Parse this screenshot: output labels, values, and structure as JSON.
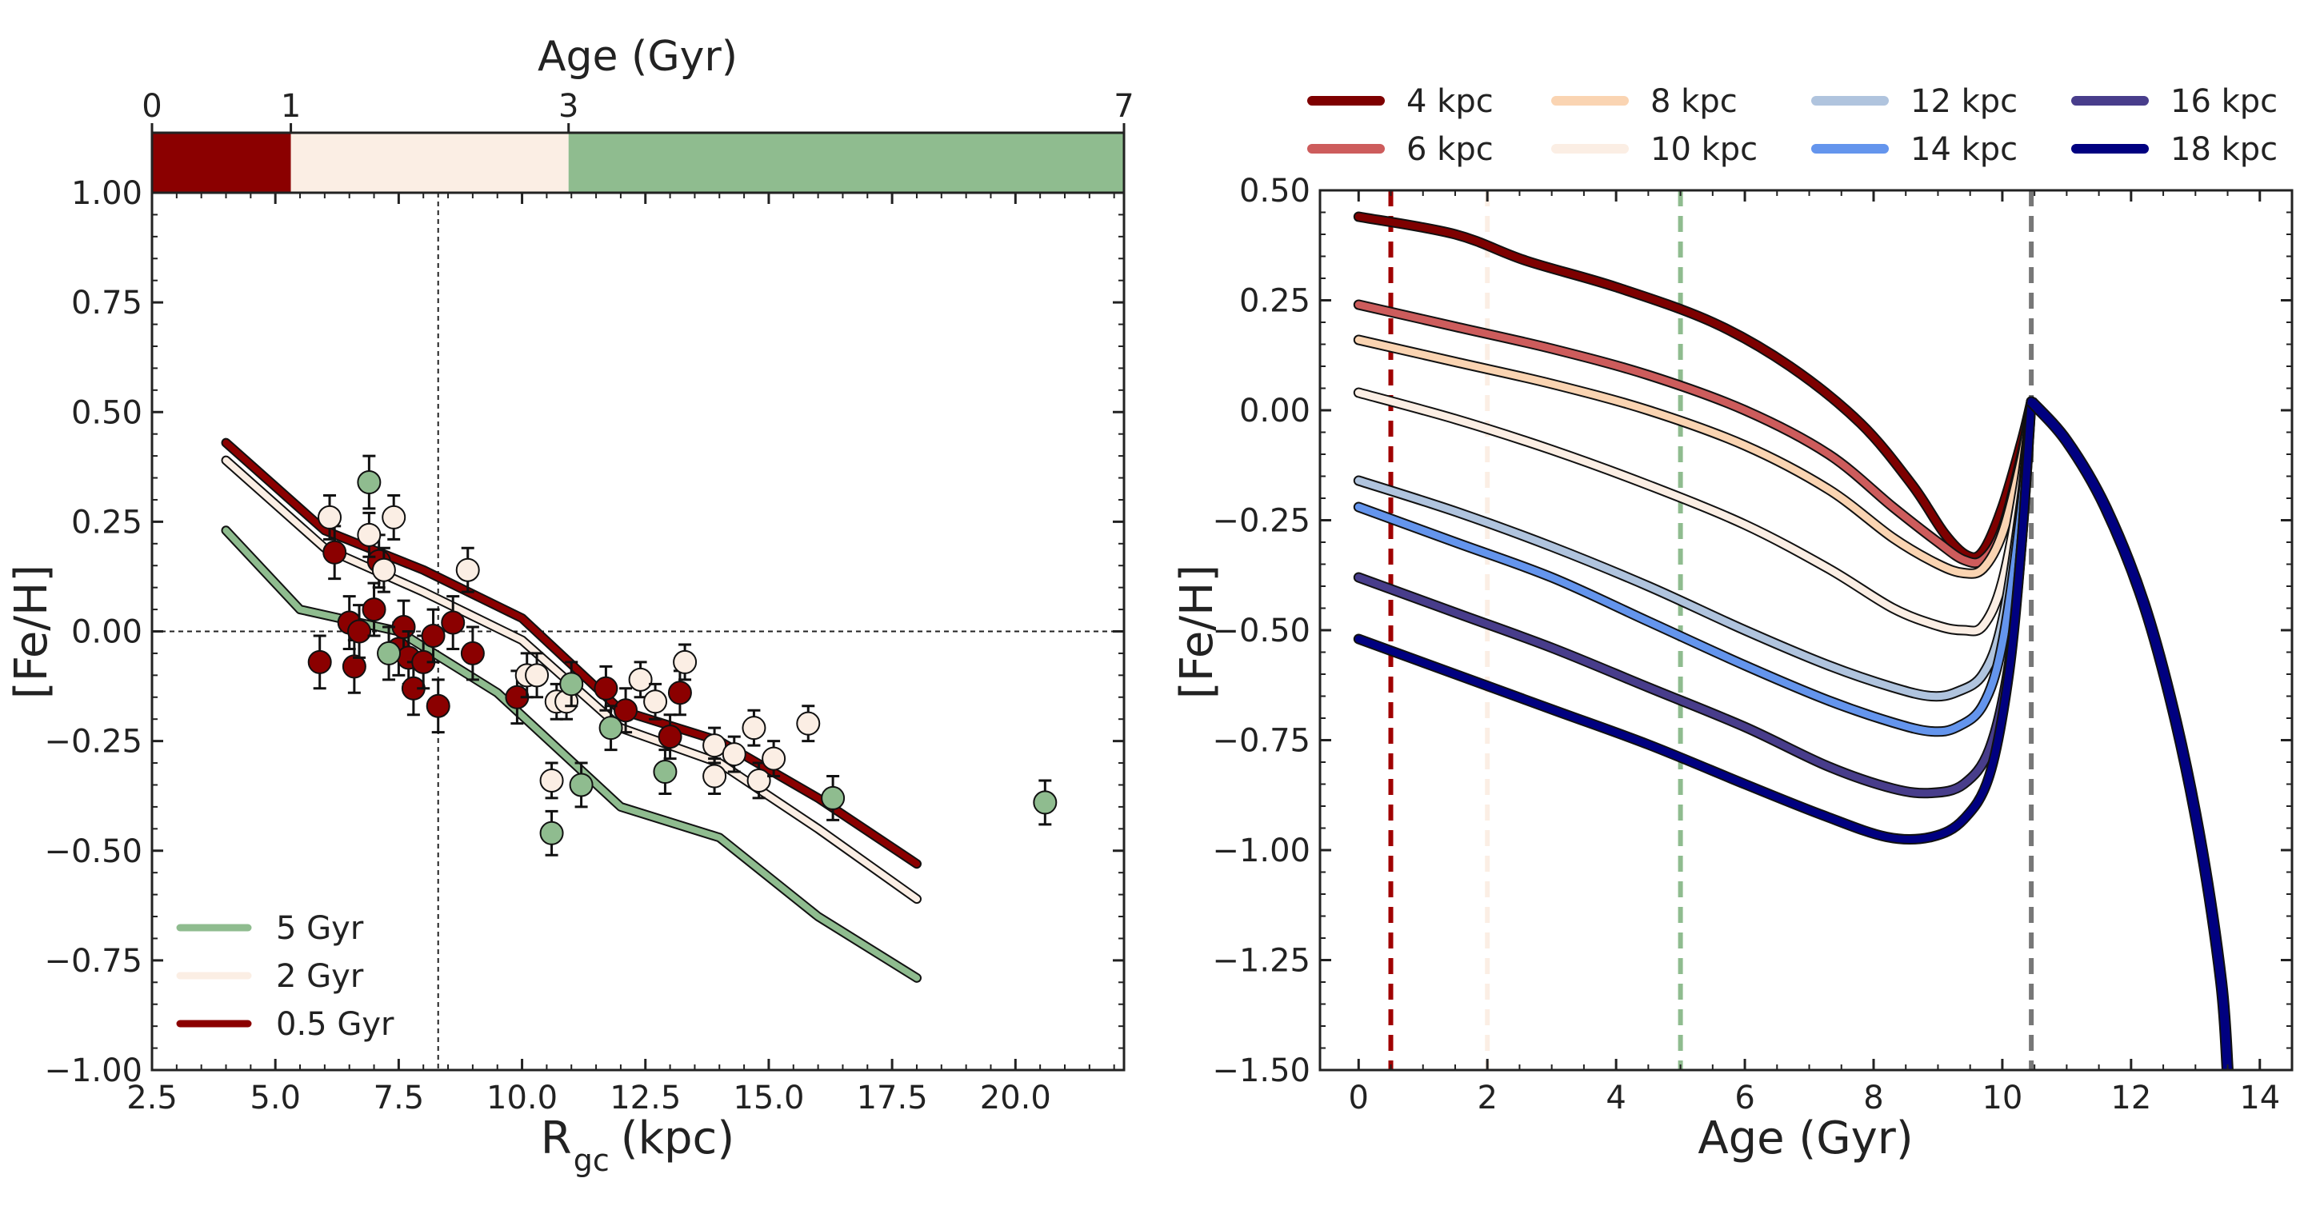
{
  "chart_data": [
    {
      "type": "scatter",
      "panel": "left",
      "xlabel_main": "R",
      "xlabel_sub": "gc",
      "xlabel_unit": "(kpc)",
      "ylabel": "[Fe/H]",
      "xlim": [
        2.5,
        22.2
      ],
      "ylim": [
        -1.0,
        1.0
      ],
      "x_ticks": [
        "2.5",
        "5.0",
        "7.5",
        "10.0",
        "12.5",
        "15.0",
        "17.5",
        "20.0"
      ],
      "y_ticks": [
        "−1.00",
        "−0.75",
        "−0.50",
        "−0.25",
        "0.00",
        "0.25",
        "0.50",
        "0.75",
        "1.00"
      ],
      "reference_lines": {
        "x": 8.3,
        "y": 0.0
      },
      "age_bar": {
        "title": "Age (Gyr)",
        "ticks": [
          "0",
          "1",
          "3",
          "7"
        ],
        "segments": [
          {
            "from": 0,
            "to": 1,
            "color": "#8b0000"
          },
          {
            "from": 1,
            "to": 3,
            "color": "#fbeee4"
          },
          {
            "from": 3,
            "to": 7,
            "color": "#8fbc8f"
          }
        ]
      },
      "legend": {
        "location": "lower-left",
        "entries": [
          "5 Gyr",
          "2 Gyr",
          "0.5 Gyr"
        ]
      },
      "series": [
        {
          "name": "5 Gyr",
          "color": "#8fbc8f",
          "x": [
            4,
            5.5,
            7.5,
            9.5,
            12,
            14,
            16,
            18
          ],
          "y": [
            0.23,
            0.05,
            0.0,
            -0.14,
            -0.4,
            -0.47,
            -0.65,
            -0.79
          ]
        },
        {
          "name": "2 Gyr",
          "color": "#fbeee4",
          "x": [
            4,
            6,
            8,
            10,
            12,
            14,
            16,
            18
          ],
          "y": [
            0.39,
            0.19,
            0.09,
            -0.02,
            -0.22,
            -0.3,
            -0.45,
            -0.61
          ]
        },
        {
          "name": "0.5 Gyr",
          "color": "#8b0000",
          "x": [
            4,
            6,
            8,
            10,
            12,
            14,
            16,
            18
          ],
          "y": [
            0.43,
            0.23,
            0.14,
            0.03,
            -0.18,
            -0.25,
            -0.38,
            -0.53
          ]
        }
      ],
      "points": {
        "young": {
          "color": "#8b0000",
          "data": [
            [
              5.9,
              -0.07,
              0.06
            ],
            [
              6.2,
              0.18,
              0.06
            ],
            [
              6.5,
              0.02,
              0.06
            ],
            [
              6.6,
              -0.08,
              0.06
            ],
            [
              6.7,
              0.0,
              0.06
            ],
            [
              7.0,
              0.05,
              0.06
            ],
            [
              7.1,
              0.16,
              0.06
            ],
            [
              7.5,
              -0.04,
              0.06
            ],
            [
              7.6,
              0.01,
              0.06
            ],
            [
              7.7,
              -0.06,
              0.06
            ],
            [
              7.8,
              -0.13,
              0.06
            ],
            [
              8.0,
              -0.07,
              0.06
            ],
            [
              8.2,
              -0.01,
              0.06
            ],
            [
              8.3,
              -0.17,
              0.06
            ],
            [
              8.6,
              0.02,
              0.06
            ],
            [
              9.0,
              -0.05,
              0.06
            ],
            [
              9.9,
              -0.15,
              0.06
            ],
            [
              11.7,
              -0.13,
              0.05
            ],
            [
              12.1,
              -0.18,
              0.05
            ],
            [
              13.0,
              -0.24,
              0.05
            ],
            [
              13.2,
              -0.14,
              0.05
            ]
          ]
        },
        "mid": {
          "color": "#fbeee4",
          "data": [
            [
              6.1,
              0.26,
              0.05
            ],
            [
              6.9,
              0.22,
              0.05
            ],
            [
              7.2,
              0.14,
              0.05
            ],
            [
              7.4,
              0.26,
              0.05
            ],
            [
              8.9,
              0.14,
              0.05
            ],
            [
              10.1,
              -0.1,
              0.05
            ],
            [
              10.3,
              -0.1,
              0.05
            ],
            [
              10.6,
              -0.34,
              0.04
            ],
            [
              10.7,
              -0.16,
              0.04
            ],
            [
              10.9,
              -0.16,
              0.04
            ],
            [
              12.4,
              -0.11,
              0.04
            ],
            [
              12.7,
              -0.16,
              0.04
            ],
            [
              13.3,
              -0.07,
              0.04
            ],
            [
              13.9,
              -0.26,
              0.04
            ],
            [
              13.9,
              -0.33,
              0.04
            ],
            [
              14.3,
              -0.28,
              0.04
            ],
            [
              14.7,
              -0.22,
              0.04
            ],
            [
              14.8,
              -0.34,
              0.04
            ],
            [
              15.1,
              -0.29,
              0.04
            ],
            [
              15.8,
              -0.21,
              0.04
            ]
          ]
        },
        "old": {
          "color": "#8fbc8f",
          "data": [
            [
              6.9,
              0.34,
              0.06
            ],
            [
              7.3,
              -0.05,
              0.06
            ],
            [
              10.6,
              -0.46,
              0.05
            ],
            [
              11.0,
              -0.12,
              0.05
            ],
            [
              11.2,
              -0.35,
              0.05
            ],
            [
              11.8,
              -0.22,
              0.05
            ],
            [
              12.9,
              -0.32,
              0.05
            ],
            [
              16.3,
              -0.38,
              0.05
            ],
            [
              20.6,
              -0.39,
              0.05
            ]
          ]
        }
      }
    },
    {
      "type": "line",
      "panel": "right",
      "xlabel": "Age (Gyr)",
      "ylabel": "[Fe/H]",
      "xlim": [
        -0.6,
        14.5
      ],
      "ylim": [
        -1.5,
        0.5
      ],
      "x_ticks": [
        "0",
        "2",
        "4",
        "6",
        "8",
        "10",
        "12",
        "14"
      ],
      "y_ticks": [
        "−1.50",
        "−1.25",
        "−1.00",
        "−0.75",
        "−0.50",
        "−0.25",
        "0.00",
        "0.25",
        "0.50"
      ],
      "vertical_lines": [
        {
          "x": 0.5,
          "color": "#a00000"
        },
        {
          "x": 2.0,
          "color": "#fbeee4"
        },
        {
          "x": 5.0,
          "color": "#8fbc8f"
        },
        {
          "x": 10.45,
          "color": "#777777"
        }
      ],
      "legend": {
        "location": "top",
        "columns": 4
      },
      "shared_tail": {
        "x": [
          10.45,
          11.0,
          11.6,
          12.2,
          12.7,
          13.1,
          13.4,
          13.5
        ],
        "y": [
          0.02,
          -0.07,
          -0.22,
          -0.44,
          -0.71,
          -1.0,
          -1.3,
          -1.5
        ]
      },
      "series": [
        {
          "name": "4 kpc",
          "color": "#7e0000",
          "x": [
            0,
            1.5,
            2.6,
            4,
            5.5,
            6.7,
            7.8,
            8.6,
            9.1,
            9.45,
            9.7,
            10.0,
            10.3,
            10.45
          ],
          "y": [
            0.44,
            0.4,
            0.34,
            0.28,
            0.2,
            0.1,
            -0.03,
            -0.17,
            -0.28,
            -0.33,
            -0.32,
            -0.22,
            -0.07,
            0.02
          ]
        },
        {
          "name": "6 kpc",
          "color": "#cd5c5c",
          "x": [
            0,
            1.5,
            3,
            4.5,
            6,
            7.3,
            8.3,
            9.0,
            9.4,
            9.7,
            10.0,
            10.3,
            10.45
          ],
          "y": [
            0.24,
            0.19,
            0.14,
            0.08,
            0.0,
            -0.1,
            -0.22,
            -0.3,
            -0.34,
            -0.34,
            -0.27,
            -0.1,
            0.02
          ]
        },
        {
          "name": "8 kpc",
          "color": "#fad4b2",
          "x": [
            0,
            1.5,
            3,
            4.5,
            6,
            7.3,
            8.3,
            9.0,
            9.4,
            9.7,
            10.0,
            10.3,
            10.45
          ],
          "y": [
            0.16,
            0.11,
            0.06,
            0.0,
            -0.08,
            -0.18,
            -0.29,
            -0.35,
            -0.37,
            -0.36,
            -0.28,
            -0.11,
            0.02
          ]
        },
        {
          "name": "10 kpc",
          "color": "#fbeee4",
          "x": [
            0,
            1.5,
            3,
            4.5,
            6,
            7.3,
            8.3,
            9.0,
            9.4,
            9.7,
            10.0,
            10.3,
            10.45
          ],
          "y": [
            0.04,
            -0.02,
            -0.09,
            -0.17,
            -0.26,
            -0.36,
            -0.45,
            -0.49,
            -0.5,
            -0.49,
            -0.39,
            -0.16,
            0.02
          ]
        },
        {
          "name": "12 kpc",
          "color": "#b0c4de",
          "x": [
            0,
            1.5,
            3,
            4.5,
            6,
            7.3,
            8.3,
            8.9,
            9.3,
            9.7,
            10.0,
            10.3,
            10.45
          ],
          "y": [
            -0.16,
            -0.23,
            -0.31,
            -0.4,
            -0.5,
            -0.58,
            -0.63,
            -0.65,
            -0.64,
            -0.6,
            -0.48,
            -0.2,
            0.02
          ]
        },
        {
          "name": "14 kpc",
          "color": "#6495ed",
          "x": [
            0,
            1.5,
            3,
            4.5,
            6,
            7.3,
            8.3,
            8.9,
            9.3,
            9.7,
            10.0,
            10.3,
            10.45
          ],
          "y": [
            -0.22,
            -0.3,
            -0.38,
            -0.48,
            -0.58,
            -0.66,
            -0.71,
            -0.73,
            -0.72,
            -0.67,
            -0.53,
            -0.22,
            0.02
          ]
        },
        {
          "name": "16 kpc",
          "color": "#483d8b",
          "x": [
            0,
            1.5,
            3,
            4.5,
            6,
            7.3,
            8.3,
            8.9,
            9.4,
            9.8,
            10.1,
            10.3,
            10.45
          ],
          "y": [
            -0.38,
            -0.46,
            -0.54,
            -0.63,
            -0.72,
            -0.81,
            -0.86,
            -0.87,
            -0.85,
            -0.77,
            -0.58,
            -0.3,
            0.02
          ]
        },
        {
          "name": "18 kpc",
          "color": "#000080",
          "x": [
            0,
            1.5,
            3,
            4.5,
            6,
            7.2,
            8.2,
            8.9,
            9.4,
            9.8,
            10.1,
            10.3,
            10.45
          ],
          "y": [
            -0.52,
            -0.6,
            -0.68,
            -0.76,
            -0.85,
            -0.92,
            -0.97,
            -0.97,
            -0.93,
            -0.83,
            -0.6,
            -0.3,
            0.02
          ]
        }
      ]
    }
  ]
}
